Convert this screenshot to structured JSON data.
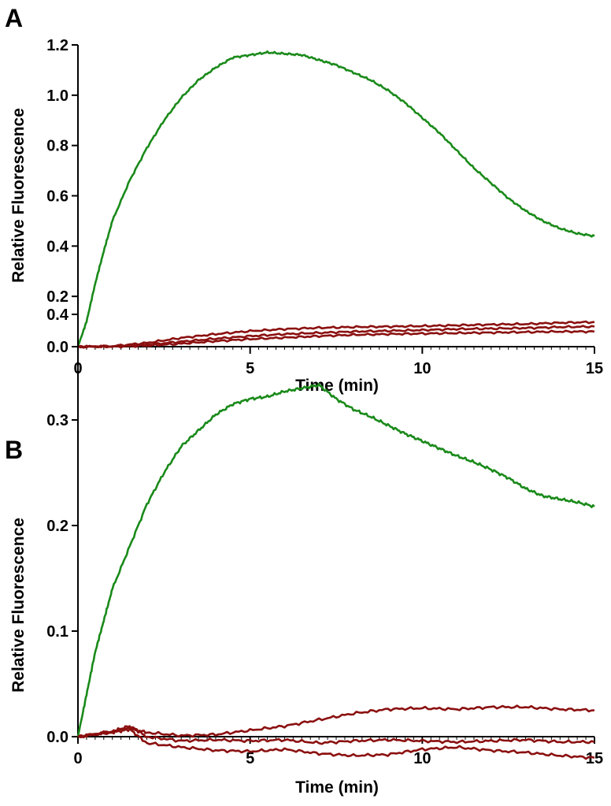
{
  "chart_data": [
    {
      "panel": "A",
      "type": "line",
      "xlabel": "Time (min)",
      "ylabel": "Relative Fluorescence",
      "xlim": [
        0,
        15
      ],
      "ylim": [
        0,
        1.2
      ],
      "xticks": [
        "0",
        "5",
        "10",
        "15"
      ],
      "yticks": [
        "0.0",
        "0.2",
        "0.4",
        "0.6",
        "0.8",
        "1.0",
        "1.2"
      ],
      "colors": {
        "green": "#1a8a1a",
        "red": "#8b1010"
      },
      "series": [
        {
          "color": "green",
          "x": [
            0,
            0.25,
            0.5,
            0.75,
            1,
            1.5,
            2,
            2.5,
            3,
            3.5,
            4,
            4.5,
            5,
            5.5,
            6,
            6.5,
            7,
            7.5,
            8,
            8.5,
            9,
            9.5,
            10,
            10.5,
            11,
            11.5,
            12,
            12.5,
            13,
            13.5,
            14,
            14.5,
            15
          ],
          "y": [
            0,
            0.1,
            0.25,
            0.38,
            0.5,
            0.66,
            0.79,
            0.9,
            0.99,
            1.06,
            1.11,
            1.15,
            1.16,
            1.17,
            1.165,
            1.16,
            1.14,
            1.12,
            1.09,
            1.06,
            1.02,
            0.97,
            0.91,
            0.85,
            0.78,
            0.71,
            0.65,
            0.59,
            0.54,
            0.5,
            0.47,
            0.45,
            0.44
          ]
        },
        {
          "color": "red",
          "x": [
            0,
            1,
            2,
            3,
            4,
            5,
            6,
            7,
            8,
            9,
            10,
            11,
            12,
            13,
            14,
            15
          ],
          "y": [
            0,
            0.002,
            0.015,
            0.035,
            0.05,
            0.062,
            0.07,
            0.075,
            0.078,
            0.08,
            0.082,
            0.085,
            0.088,
            0.09,
            0.095,
            0.098
          ]
        },
        {
          "color": "red",
          "x": [
            0,
            1,
            2,
            3,
            4,
            5,
            6,
            7,
            8,
            9,
            10,
            11,
            12,
            13,
            14,
            15
          ],
          "y": [
            0,
            0.001,
            0.008,
            0.02,
            0.032,
            0.042,
            0.05,
            0.055,
            0.06,
            0.063,
            0.066,
            0.07,
            0.072,
            0.074,
            0.078,
            0.08
          ]
        },
        {
          "color": "red",
          "x": [
            0,
            1,
            2,
            3,
            4,
            5,
            6,
            7,
            8,
            9,
            10,
            11,
            12,
            13,
            14,
            15
          ],
          "y": [
            0,
            0.0,
            0.004,
            0.012,
            0.022,
            0.03,
            0.036,
            0.042,
            0.047,
            0.05,
            0.052,
            0.054,
            0.056,
            0.058,
            0.06,
            0.06
          ]
        }
      ]
    },
    {
      "panel": "B",
      "type": "line",
      "xlabel": "Time (min)",
      "ylabel": "Relative Fluorescence",
      "xlim": [
        0,
        15
      ],
      "ylim": [
        0,
        0.4
      ],
      "xticks": [
        "0",
        "5",
        "10",
        "15"
      ],
      "yticks": [
        "0.0",
        "0.1",
        "0.2",
        "0.3",
        "0.4"
      ],
      "colors": {
        "green": "#1a8a1a",
        "red": "#8b1010"
      },
      "series": [
        {
          "color": "green",
          "x": [
            0,
            0.25,
            0.5,
            0.75,
            1,
            1.5,
            2,
            2.5,
            3,
            3.5,
            4,
            4.5,
            5,
            5.5,
            6,
            6.5,
            7,
            7.5,
            8,
            8.5,
            9,
            9.5,
            10,
            10.5,
            11,
            11.5,
            12,
            12.5,
            13,
            13.5,
            14,
            14.5,
            15
          ],
          "y": [
            0,
            0.04,
            0.08,
            0.11,
            0.14,
            0.18,
            0.22,
            0.25,
            0.275,
            0.29,
            0.305,
            0.315,
            0.32,
            0.322,
            0.327,
            0.33,
            0.333,
            0.32,
            0.31,
            0.303,
            0.295,
            0.287,
            0.28,
            0.273,
            0.266,
            0.26,
            0.253,
            0.245,
            0.235,
            0.228,
            0.225,
            0.222,
            0.218
          ]
        },
        {
          "color": "red",
          "x": [
            0,
            1,
            1.5,
            2,
            3,
            4,
            5,
            6,
            7,
            8,
            9,
            10,
            11,
            12,
            13,
            14,
            15
          ],
          "y": [
            0,
            0.005,
            0.008,
            0.004,
            0.001,
            0.002,
            0.006,
            0.01,
            0.016,
            0.022,
            0.026,
            0.027,
            0.026,
            0.028,
            0.028,
            0.026,
            0.025
          ]
        },
        {
          "color": "red",
          "x": [
            0,
            1,
            1.5,
            2,
            3,
            4,
            5,
            6,
            7,
            8,
            9,
            10,
            11,
            12,
            13,
            14,
            15
          ],
          "y": [
            0,
            0.005,
            0.01,
            0.0,
            -0.004,
            -0.003,
            -0.004,
            -0.003,
            -0.006,
            -0.004,
            -0.003,
            -0.004,
            -0.005,
            -0.004,
            -0.003,
            -0.005,
            -0.005
          ]
        },
        {
          "color": "red",
          "x": [
            0,
            1,
            1.5,
            2,
            3,
            4,
            5,
            6,
            7,
            8,
            9,
            10,
            11,
            12,
            13,
            14,
            15
          ],
          "y": [
            0,
            0.004,
            0.007,
            -0.006,
            -0.01,
            -0.013,
            -0.014,
            -0.012,
            -0.016,
            -0.018,
            -0.017,
            -0.012,
            -0.01,
            -0.013,
            -0.015,
            -0.018,
            -0.02
          ]
        }
      ]
    }
  ]
}
